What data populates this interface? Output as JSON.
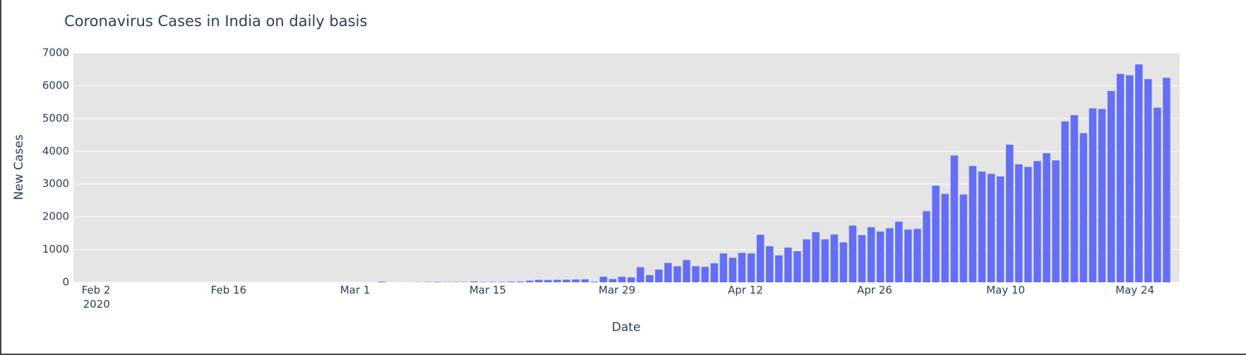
{
  "chart_data": {
    "type": "bar",
    "title": "Coronavirus Cases in India on daily basis",
    "x_label": "Date",
    "y_label": "New Cases",
    "color": "#636efa",
    "grid": true,
    "x": [
      "2020-01-31",
      "2020-02-01",
      "2020-02-02",
      "2020-02-03",
      "2020-02-04",
      "2020-02-05",
      "2020-02-06",
      "2020-02-07",
      "2020-02-08",
      "2020-02-09",
      "2020-02-10",
      "2020-02-11",
      "2020-02-12",
      "2020-02-13",
      "2020-02-14",
      "2020-02-15",
      "2020-02-16",
      "2020-02-17",
      "2020-02-18",
      "2020-02-19",
      "2020-02-20",
      "2020-02-21",
      "2020-02-22",
      "2020-02-23",
      "2020-02-24",
      "2020-02-25",
      "2020-02-26",
      "2020-02-27",
      "2020-02-28",
      "2020-02-29",
      "2020-03-01",
      "2020-03-02",
      "2020-03-03",
      "2020-03-04",
      "2020-03-05",
      "2020-03-06",
      "2020-03-07",
      "2020-03-08",
      "2020-03-09",
      "2020-03-10",
      "2020-03-11",
      "2020-03-12",
      "2020-03-13",
      "2020-03-14",
      "2020-03-15",
      "2020-03-16",
      "2020-03-17",
      "2020-03-18",
      "2020-03-19",
      "2020-03-20",
      "2020-03-21",
      "2020-03-22",
      "2020-03-23",
      "2020-03-24",
      "2020-03-25",
      "2020-03-26",
      "2020-03-27",
      "2020-03-28",
      "2020-03-29",
      "2020-03-30",
      "2020-03-31",
      "2020-04-01",
      "2020-04-02",
      "2020-04-03",
      "2020-04-04",
      "2020-04-05",
      "2020-04-06",
      "2020-04-07",
      "2020-04-08",
      "2020-04-09",
      "2020-04-10",
      "2020-04-11",
      "2020-04-12",
      "2020-04-13",
      "2020-04-14",
      "2020-04-15",
      "2020-04-16",
      "2020-04-17",
      "2020-04-18",
      "2020-04-19",
      "2020-04-20",
      "2020-04-21",
      "2020-04-22",
      "2020-04-23",
      "2020-04-24",
      "2020-04-25",
      "2020-04-26",
      "2020-04-27",
      "2020-04-28",
      "2020-04-29",
      "2020-04-30",
      "2020-05-01",
      "2020-05-02",
      "2020-05-03",
      "2020-05-04",
      "2020-05-05",
      "2020-05-06",
      "2020-05-07",
      "2020-05-08",
      "2020-05-09",
      "2020-05-10",
      "2020-05-11",
      "2020-05-12",
      "2020-05-13",
      "2020-05-14",
      "2020-05-15",
      "2020-05-16",
      "2020-05-17",
      "2020-05-18",
      "2020-05-19",
      "2020-05-20",
      "2020-05-21",
      "2020-05-22",
      "2020-05-23",
      "2020-05-24",
      "2020-05-25",
      "2020-05-26",
      "2020-05-27",
      "2020-05-28"
    ],
    "values": [
      0,
      0,
      0,
      0,
      0,
      0,
      0,
      0,
      0,
      0,
      0,
      0,
      0,
      0,
      0,
      0,
      0,
      0,
      0,
      0,
      0,
      0,
      0,
      0,
      0,
      0,
      0,
      0,
      0,
      0,
      0,
      2,
      1,
      22,
      2,
      1,
      3,
      5,
      9,
      15,
      8,
      10,
      9,
      26,
      10,
      12,
      13,
      20,
      25,
      50,
      75,
      70,
      75,
      80,
      85,
      90,
      20,
      170,
      100,
      170,
      150,
      460,
      220,
      390,
      590,
      490,
      680,
      490,
      470,
      580,
      880,
      750,
      900,
      880,
      1450,
      1100,
      820,
      1060,
      950,
      1310,
      1530,
      1310,
      1460,
      1220,
      1730,
      1440,
      1680,
      1550,
      1650,
      1850,
      1610,
      1630,
      2170,
      2950,
      2700,
      3870,
      2680,
      3550,
      3380,
      3310,
      3230,
      4200,
      3600,
      3520,
      3700,
      3940,
      3720,
      4910,
      5100,
      4550,
      5310,
      5290,
      5840,
      6360,
      6320,
      6650,
      6200,
      5330,
      6240
    ],
    "xlim": [
      "2020-01-30T14:00:00Z",
      "2020-05-29T10:00:00Z"
    ],
    "xticks": [
      {
        "value": "2020-02-02",
        "label": "Feb 2\n2020"
      },
      {
        "value": "2020-02-16",
        "label": "Feb 16"
      },
      {
        "value": "2020-03-01",
        "label": "Mar 1"
      },
      {
        "value": "2020-03-15",
        "label": "Mar 15"
      },
      {
        "value": "2020-03-29",
        "label": "Mar 29"
      },
      {
        "value": "2020-04-12",
        "label": "Apr 12"
      },
      {
        "value": "2020-04-26",
        "label": "Apr 26"
      },
      {
        "value": "2020-05-10",
        "label": "May 10"
      },
      {
        "value": "2020-05-24",
        "label": "May 24"
      }
    ],
    "ylim": [
      0,
      7000
    ],
    "yticks": [
      0,
      1000,
      2000,
      3000,
      4000,
      5000,
      6000,
      7000
    ]
  }
}
